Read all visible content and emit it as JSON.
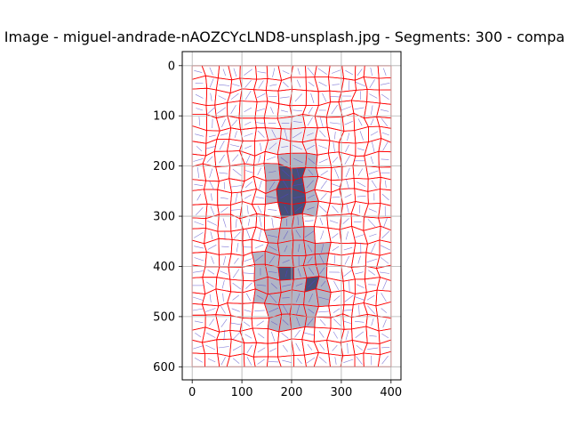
{
  "chart_data": {
    "type": "image-segmentation-plot",
    "title": "Image - miguel-andrade-nAOZCYcLND8-unsplash.jpg - Segments: 300 - compa",
    "xlim": [
      -20,
      420
    ],
    "ylim": [
      626,
      -28
    ],
    "xticks": [
      0,
      100,
      200,
      300,
      400
    ],
    "yticks": [
      0,
      100,
      200,
      300,
      400,
      500,
      600
    ],
    "grid": true,
    "image_extent": {
      "x": [
        0,
        400
      ],
      "y": [
        0,
        600
      ]
    },
    "segments": 300,
    "colors": {
      "boundary": "#ff0000",
      "hint_line": "#4f43c8",
      "grid": "#b0b0b0",
      "fill_light": "#eceef4",
      "fill_mid": "#b1b5c6",
      "fill_dark": "#474f78"
    }
  }
}
